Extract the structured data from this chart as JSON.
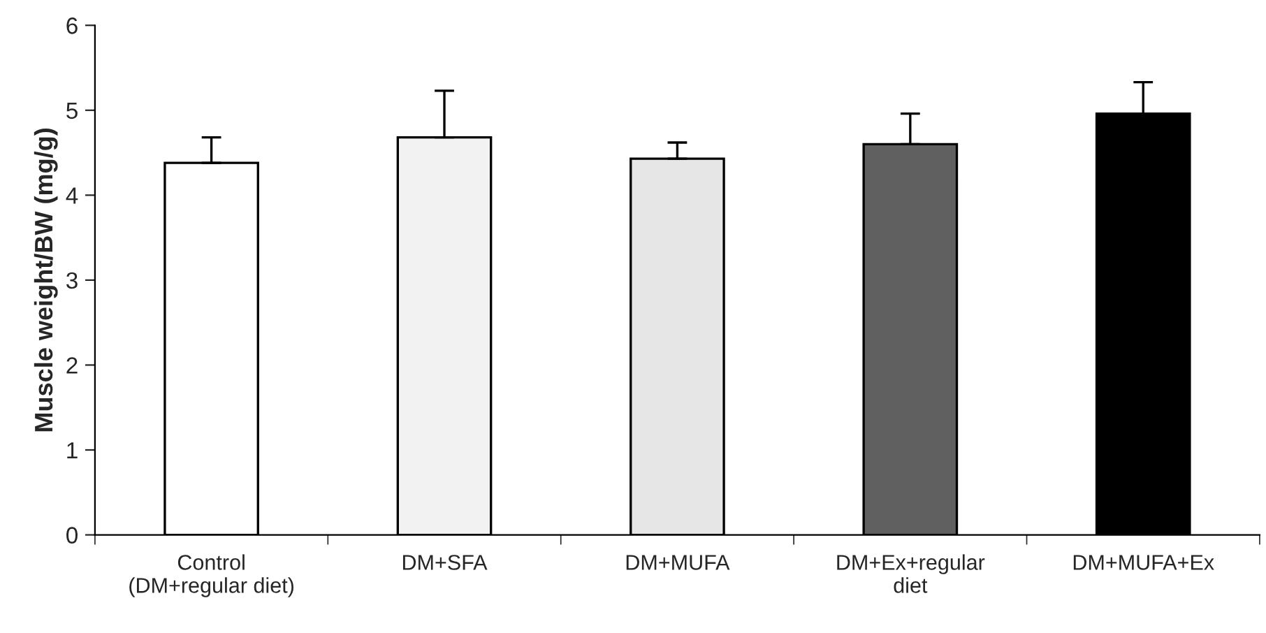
{
  "chart_data": {
    "type": "bar",
    "ylabel": "Muscle weight/BW (mg/g)",
    "categories": [
      "Control\n(DM+regular diet)",
      "DM+SFA",
      "DM+MUFA",
      "DM+Ex+regular\ndiet",
      "DM+MUFA+Ex"
    ],
    "values": [
      4.38,
      4.68,
      4.43,
      4.6,
      4.96
    ],
    "errors": [
      [
        4.38,
        4.68
      ],
      [
        4.68,
        5.23
      ],
      [
        4.43,
        4.62
      ],
      [
        4.6,
        4.96
      ],
      [
        4.96,
        5.33
      ]
    ],
    "colors": [
      "#ffffff",
      "#f2f2f2",
      "#e6e6e6",
      "#606060",
      "#000000"
    ],
    "ylim": [
      0,
      6
    ],
    "yticks": [
      0,
      1,
      2,
      3,
      4,
      5,
      6
    ],
    "grid": false,
    "legend": false
  }
}
